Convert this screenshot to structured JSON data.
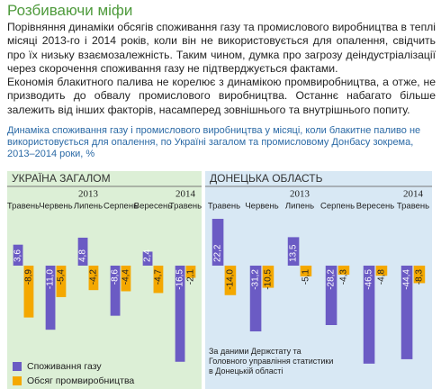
{
  "title": "Розбиваючи міфи",
  "paragraphs": [
    "Порівняння динаміки обсягів споживання газу та промислового виробництва в теплі місяці 2013-го і 2014 років, коли він не використовується для опалення, свідчить про їх низьку взаємозалежність. Таким чином, думка про загрозу деіндустріалізації через скорочення споживання газу не підтверджується фактами.",
    "Економія блакитного палива не корелює з динамікою промвиробництва, а отже, не призводить до обвалу промислового виробництва. Останнє набагато більше залежить від інших факторів, насамперед зовнішнього та внутрішнього попиту."
  ],
  "subtitle": "Динаміка споживання газу і промислового виробництва у місяці, коли блакитне паливо не використовується для опалення, по Україні загалом та промисловому Донбасу зокрема, 2013–2014 роки, %",
  "chart_data": [
    {
      "type": "bar",
      "title": "УКРАЇНА ЗАГАЛОМ",
      "background": "#dcefd6",
      "categories": [
        "Травень",
        "Червень",
        "Липень",
        "Серпень",
        "Вересень",
        "Травень"
      ],
      "annotations": [
        {
          "text": "2013",
          "category_index": 2
        },
        {
          "text": "2014",
          "category_index": 5
        }
      ],
      "ylim": [
        -17,
        8.5
      ],
      "series": [
        {
          "name": "Споживання газу",
          "color": "#6b5bc4",
          "values": [
            3.6,
            -11.0,
            4.8,
            -8.6,
            2.4,
            -16.5
          ],
          "value_labels": [
            "3,6",
            "-11,0",
            "4,8",
            "-8,6",
            "2,4",
            "-16,5"
          ]
        },
        {
          "name": "Обсяг промвиробництва",
          "color": "#f4a800",
          "values": [
            -8.9,
            -5.4,
            -4.2,
            -4.4,
            -4.7,
            -2.1
          ],
          "value_labels": [
            "-8,9",
            "-5,4",
            "-4,2",
            "-4,4",
            "-4,7",
            "-2,1"
          ]
        }
      ]
    },
    {
      "type": "bar",
      "title": "ДОНЕЦЬКА ОБЛАСТЬ",
      "background": "#d8e8f4",
      "categories": [
        "Травень",
        "Червень",
        "Липень",
        "Серпень",
        "Вересень",
        "Травень"
      ],
      "annotations": [
        {
          "text": "2013",
          "category_index": 2
        },
        {
          "text": "2014",
          "category_index": 5
        }
      ],
      "ylim": [
        -47,
        23.5
      ],
      "source": "За даними Держстату та Головного управління статистики в Донецькій області",
      "series": [
        {
          "color": "#6b5bc4",
          "values": [
            22.2,
            -31.2,
            13.5,
            -28.2,
            -46.5,
            -44.4
          ],
          "value_labels": [
            "22,2",
            "-31,2",
            "13,5",
            "-28,2",
            "-46,5",
            "-44,4"
          ]
        },
        {
          "color": "#f4a800",
          "values": [
            -14.0,
            -10.5,
            -5.1,
            -4.3,
            -4.8,
            -8.3
          ],
          "value_labels": [
            "-14,0",
            "-10,5",
            "-5,1",
            "-4,3",
            "-4,8",
            "-8,3"
          ]
        }
      ]
    }
  ]
}
